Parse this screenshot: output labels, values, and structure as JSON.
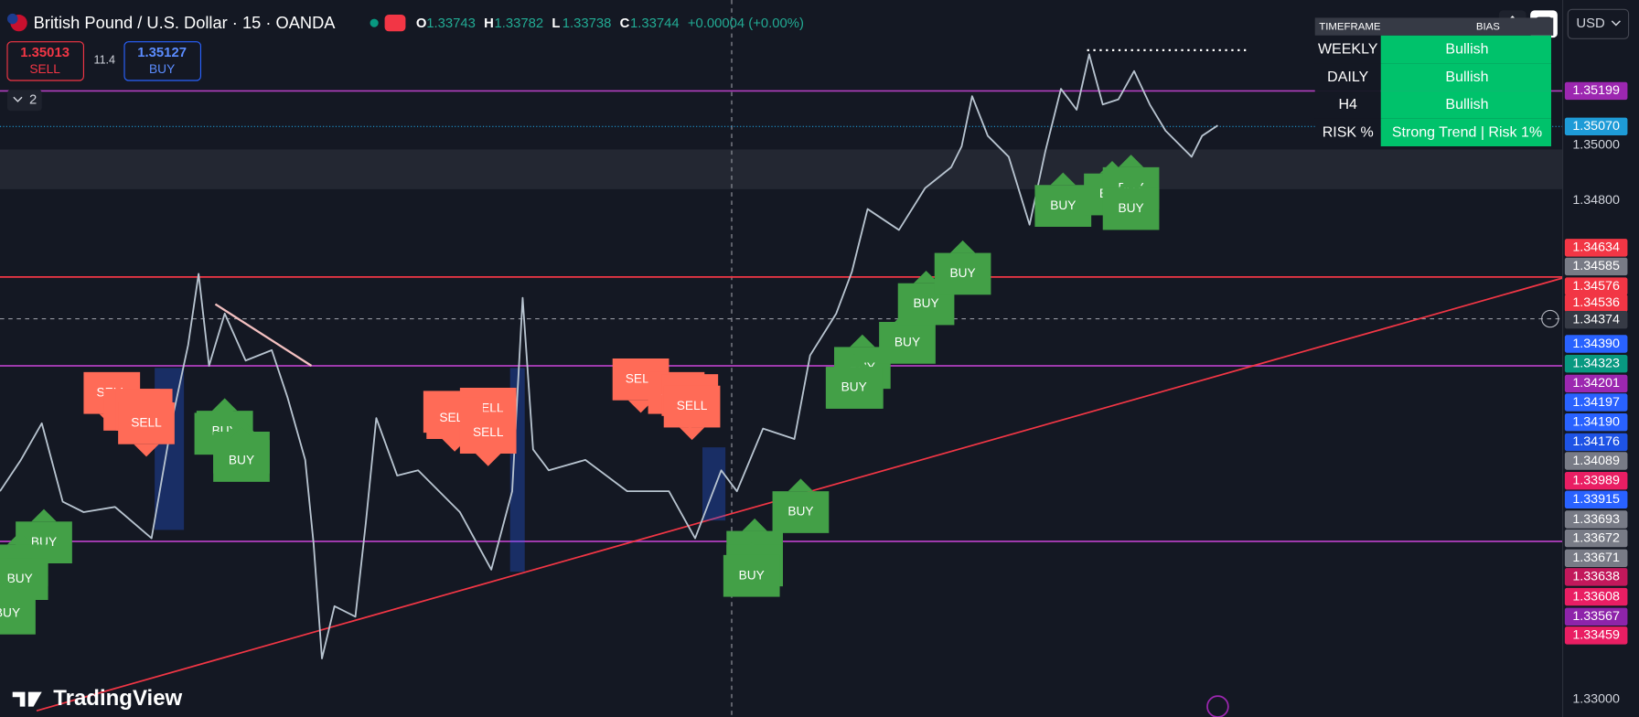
{
  "header": {
    "symbol": "British Pound / U.S. Dollar · 15 · OANDA",
    "ohlc": [
      {
        "key": "O",
        "value": "1.33743"
      },
      {
        "key": "H",
        "value": "1.33782"
      },
      {
        "key": "L",
        "value": "1.33738"
      },
      {
        "key": "C",
        "value": "1.33744"
      }
    ],
    "change": "+0.00004 (+0.00%)"
  },
  "trade": {
    "sell_price": "1.35013",
    "sell": "SELL",
    "spread": "11.4",
    "buy_price": "1.35127",
    "buy": "BUY",
    "indicators": "2"
  },
  "toolbar": {
    "currency": "USD"
  },
  "bias_table": {
    "headers": [
      "TIMEFRAME",
      "BIAS"
    ],
    "rows": [
      [
        "WEEKLY",
        "Bullish"
      ],
      [
        "DAILY",
        "Bullish"
      ],
      [
        "H4",
        "Bullish"
      ],
      [
        "RISK %",
        "Strong Trend | Risk 1%"
      ]
    ],
    "color": "#00c26b"
  },
  "price_axis": [
    {
      "text": "1.35199",
      "color": "#9c27b0"
    },
    {
      "text": "1.35070",
      "color": "#1e9bd7"
    },
    {
      "text": "1.35000",
      "color": null
    },
    {
      "text": "1.34800",
      "color": null
    },
    {
      "text": "1.34634",
      "color": "#f23645"
    },
    {
      "text": "1.34585",
      "color": "#787b86"
    },
    {
      "text": "1.34576",
      "color": "#f23645"
    },
    {
      "text": "1.34536",
      "color": "#f23645"
    },
    {
      "text": "1.34374",
      "color": "#363a45"
    },
    {
      "text": "1.34390",
      "color": "#2962ff"
    },
    {
      "text": "1.34323",
      "color": "#089981"
    },
    {
      "text": "1.34201",
      "color": "#9c27b0"
    },
    {
      "text": "1.34197",
      "color": "#2962ff"
    },
    {
      "text": "1.34190",
      "color": "#2962ff"
    },
    {
      "text": "1.34176",
      "color": "#1e53e5"
    },
    {
      "text": "1.34089",
      "color": "#787b86"
    },
    {
      "text": "1.33989",
      "color": "#e91e63"
    },
    {
      "text": "1.33915",
      "color": "#2962ff"
    },
    {
      "text": "1.33693",
      "color": "#787b86"
    },
    {
      "text": "1.33672",
      "color": "#787b86"
    },
    {
      "text": "1.33671",
      "color": "#787b86"
    },
    {
      "text": "1.33638",
      "color": "#c2185b"
    },
    {
      "text": "1.33608",
      "color": "#e91e63"
    },
    {
      "text": "1.33567",
      "color": "#8e24aa"
    },
    {
      "text": "1.33459",
      "color": "#e91e63"
    },
    {
      "text": "1.33000",
      "color": null
    }
  ],
  "signals": {
    "buy_color": "#43a047",
    "sell_color": "#ff6b57",
    "items": [
      "SELL",
      "SELL",
      "SELL",
      "SELL",
      "SELL",
      "SELL",
      "SELL",
      "SELL",
      "SELL",
      "SELL",
      "SELL",
      "SELL",
      "BUY",
      "BUY",
      "BUY",
      "BUY",
      "BUY",
      "BUY",
      "BUY",
      "BUY",
      "BUY",
      "BUY",
      "BUY",
      "BUY",
      "BUY",
      "BUY",
      "BUY",
      "BUY",
      "BUY",
      "BUY",
      "BUY",
      "BUY",
      "BUY",
      "BUY"
    ]
  },
  "branding": "TradingView"
}
